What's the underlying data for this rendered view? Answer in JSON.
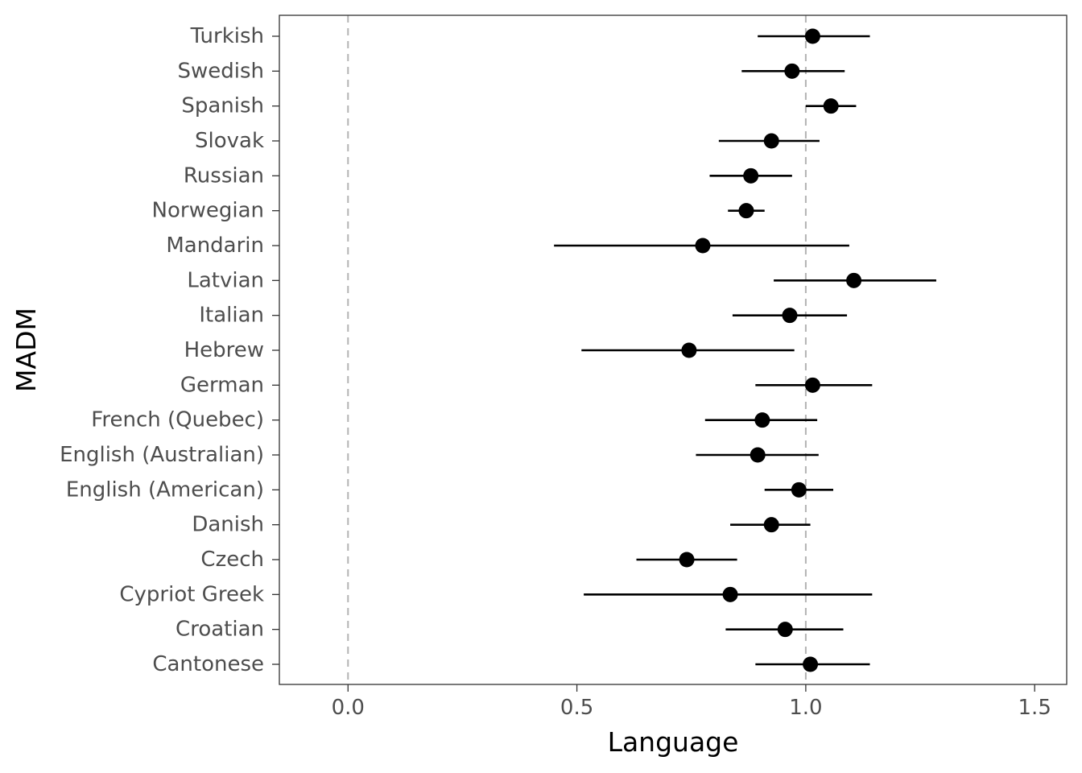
{
  "chart_data": {
    "type": "scatter",
    "subtype": "dot-and-whisker",
    "xlabel": "Language",
    "ylabel": "MADM",
    "xlim": [
      -0.15,
      1.57
    ],
    "x_ticks": [
      0.0,
      0.5,
      1.0,
      1.5
    ],
    "x_tick_labels": [
      "0.0",
      "0.5",
      "1.0",
      "1.5"
    ],
    "reference_lines": [
      0.0,
      1.0
    ],
    "grid": false,
    "legend": "none",
    "colors": {
      "point": "#000000",
      "error_bar": "#000000",
      "reference_line": "#b3b3b3",
      "panel_border": "#333333"
    },
    "categories": [
      "Turkish",
      "Swedish",
      "Spanish",
      "Slovak",
      "Russian",
      "Norwegian",
      "Mandarin",
      "Latvian",
      "Italian",
      "Hebrew",
      "German",
      "French (Quebec)",
      "English (Australian)",
      "English (American)",
      "Danish",
      "Czech",
      "Cypriot Greek",
      "Croatian",
      "Cantonese"
    ],
    "estimate": [
      1.015,
      0.97,
      1.055,
      0.925,
      0.88,
      0.87,
      0.775,
      1.105,
      0.965,
      0.745,
      1.015,
      0.905,
      0.895,
      0.985,
      0.925,
      0.74,
      0.835,
      0.955,
      1.01
    ],
    "lower": [
      0.895,
      0.86,
      1.0,
      0.81,
      0.79,
      0.83,
      0.45,
      0.93,
      0.84,
      0.51,
      0.89,
      0.78,
      0.76,
      0.91,
      0.835,
      0.63,
      0.515,
      0.825,
      0.89
    ],
    "upper": [
      1.14,
      1.085,
      1.11,
      1.03,
      0.97,
      0.91,
      1.095,
      1.285,
      1.09,
      0.975,
      1.145,
      1.025,
      1.028,
      1.06,
      1.01,
      0.85,
      1.145,
      1.082,
      1.14
    ]
  }
}
